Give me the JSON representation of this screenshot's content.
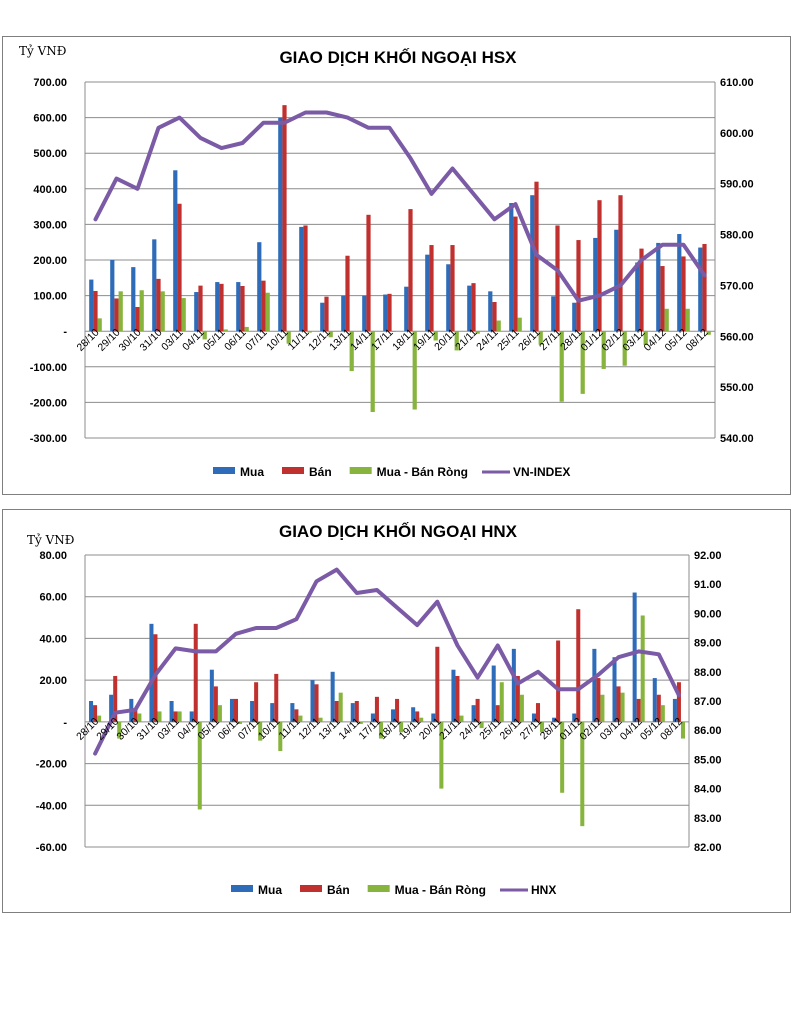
{
  "chart_data": [
    {
      "type": "bar",
      "title": "GIAO DỊCH KHỐI NGOẠI HSX",
      "ylabel": "Tỷ VNĐ",
      "ylim": [
        -300,
        700
      ],
      "y_ticks": [
        "700.00",
        "600.00",
        "500.00",
        "400.00",
        "300.00",
        "200.00",
        "100.00",
        "-",
        "-100.00",
        "-200.00",
        "-300.00"
      ],
      "y2lim": [
        540,
        610
      ],
      "y2_ticks": [
        "610.00",
        "600.00",
        "590.00",
        "580.00",
        "570.00",
        "560.00",
        "550.00",
        "540.00"
      ],
      "categories": [
        "28/10",
        "29/10",
        "30/10",
        "31/10",
        "03/11",
        "04/11",
        "05/11",
        "06/11",
        "07/11",
        "10/11",
        "11/11",
        "12/11",
        "13/11",
        "14/11",
        "17/11",
        "18/11",
        "19/11",
        "20/11",
        "21/11",
        "24/11",
        "25/11",
        "26/11",
        "27/11",
        "28/11",
        "01/12",
        "02/12",
        "03/12",
        "04/12",
        "05/12",
        "08/12"
      ],
      "series": [
        {
          "name": "Mua",
          "type": "bar",
          "axis": "left",
          "color": "#2e6bb8",
          "values": [
            145,
            200,
            180,
            258,
            452,
            110,
            138,
            138,
            250,
            600,
            293,
            80,
            100,
            100,
            103,
            125,
            215,
            188,
            128,
            112,
            360,
            382,
            98,
            80,
            262,
            285,
            193,
            248,
            273,
            235
          ]
        },
        {
          "name": "Bán",
          "type": "bar",
          "axis": "left",
          "color": "#c0302e",
          "values": [
            113,
            92,
            68,
            147,
            358,
            128,
            133,
            127,
            142,
            635,
            297,
            97,
            212,
            327,
            105,
            343,
            242,
            242,
            135,
            82,
            322,
            420,
            297,
            256,
            368,
            382,
            232,
            183,
            210,
            245
          ]
        },
        {
          "name": "Mua - Bán Ròng",
          "type": "bar",
          "axis": "left",
          "color": "#86b43c",
          "values": [
            36,
            112,
            115,
            112,
            93,
            -23,
            5,
            12,
            108,
            -35,
            -4,
            -17,
            -112,
            -227,
            -2,
            -220,
            -26,
            -54,
            -7,
            30,
            38,
            -38,
            -198,
            -176,
            -106,
            -97,
            -39,
            63,
            63,
            -10
          ]
        },
        {
          "name": "VN-INDEX",
          "type": "line",
          "axis": "right",
          "color": "#7b5aa6",
          "values": [
            583,
            591,
            589,
            601,
            603,
            599,
            597,
            598,
            602,
            602,
            604,
            604,
            603,
            601,
            601,
            595,
            588,
            593,
            588,
            583,
            586,
            576,
            573,
            567,
            568,
            570,
            575,
            578,
            578,
            572
          ]
        }
      ]
    },
    {
      "type": "bar",
      "title": "GIAO DỊCH KHỐI NGOẠI HNX",
      "ylabel": "Tỷ VNĐ",
      "ylim": [
        -60,
        80
      ],
      "y_ticks": [
        "80.00",
        "60.00",
        "40.00",
        "20.00",
        "-",
        "-20.00",
        "-40.00",
        "-60.00"
      ],
      "y2lim": [
        82,
        92
      ],
      "y2_ticks": [
        "92.00",
        "91.00",
        "90.00",
        "89.00",
        "88.00",
        "87.00",
        "86.00",
        "85.00",
        "84.00",
        "83.00",
        "82.00"
      ],
      "categories": [
        "28/10",
        "29/10",
        "30/10",
        "31/10",
        "03/11",
        "04/11",
        "05/11",
        "06/11",
        "07/11",
        "10/11",
        "11/11",
        "12/11",
        "13/11",
        "14/11",
        "17/11",
        "18/11",
        "19/11",
        "20/11",
        "21/11",
        "24/11",
        "25/11",
        "26/11",
        "27/11",
        "28/11",
        "01/12",
        "02/12",
        "03/12",
        "04/12",
        "05/12",
        "08/12"
      ],
      "series": [
        {
          "name": "Mua",
          "type": "bar",
          "axis": "left",
          "color": "#2e6bb8",
          "values": [
            10,
            13,
            11,
            47,
            10,
            5,
            25,
            11,
            10,
            9,
            9,
            20,
            24,
            9,
            4,
            6,
            7,
            4,
            25,
            8,
            27,
            35,
            4,
            2,
            4,
            35,
            31,
            62,
            21,
            11
          ]
        },
        {
          "name": "Bán",
          "type": "bar",
          "axis": "left",
          "color": "#c0302e",
          "values": [
            8,
            22,
            6,
            42,
            5,
            47,
            17,
            11,
            19,
            23,
            6,
            18,
            10,
            10,
            12,
            11,
            5,
            36,
            22,
            11,
            8,
            22,
            9,
            39,
            54,
            21,
            17,
            11,
            13,
            19
          ]
        },
        {
          "name": "Mua - Bán Ròng",
          "type": "bar",
          "axis": "left",
          "color": "#86b43c",
          "values": [
            3,
            -8,
            4,
            5,
            5,
            -42,
            8,
            -1,
            -9,
            -14,
            3,
            2,
            14,
            -1,
            -8,
            -5,
            2,
            -32,
            3,
            -3,
            19,
            13,
            -5,
            -34,
            -50,
            13,
            14,
            51,
            8,
            -8
          ]
        },
        {
          "name": "HNX",
          "type": "line",
          "axis": "right",
          "color": "#7b5aa6",
          "values": [
            85.2,
            86.6,
            86.7,
            87.9,
            88.8,
            88.7,
            88.7,
            89.3,
            89.5,
            89.5,
            89.8,
            91.1,
            91.5,
            90.7,
            90.8,
            90.2,
            89.6,
            90.4,
            88.9,
            87.8,
            88.9,
            87.6,
            88.0,
            87.4,
            87.4,
            87.9,
            88.5,
            88.7,
            88.6,
            87.2
          ]
        }
      ]
    }
  ]
}
